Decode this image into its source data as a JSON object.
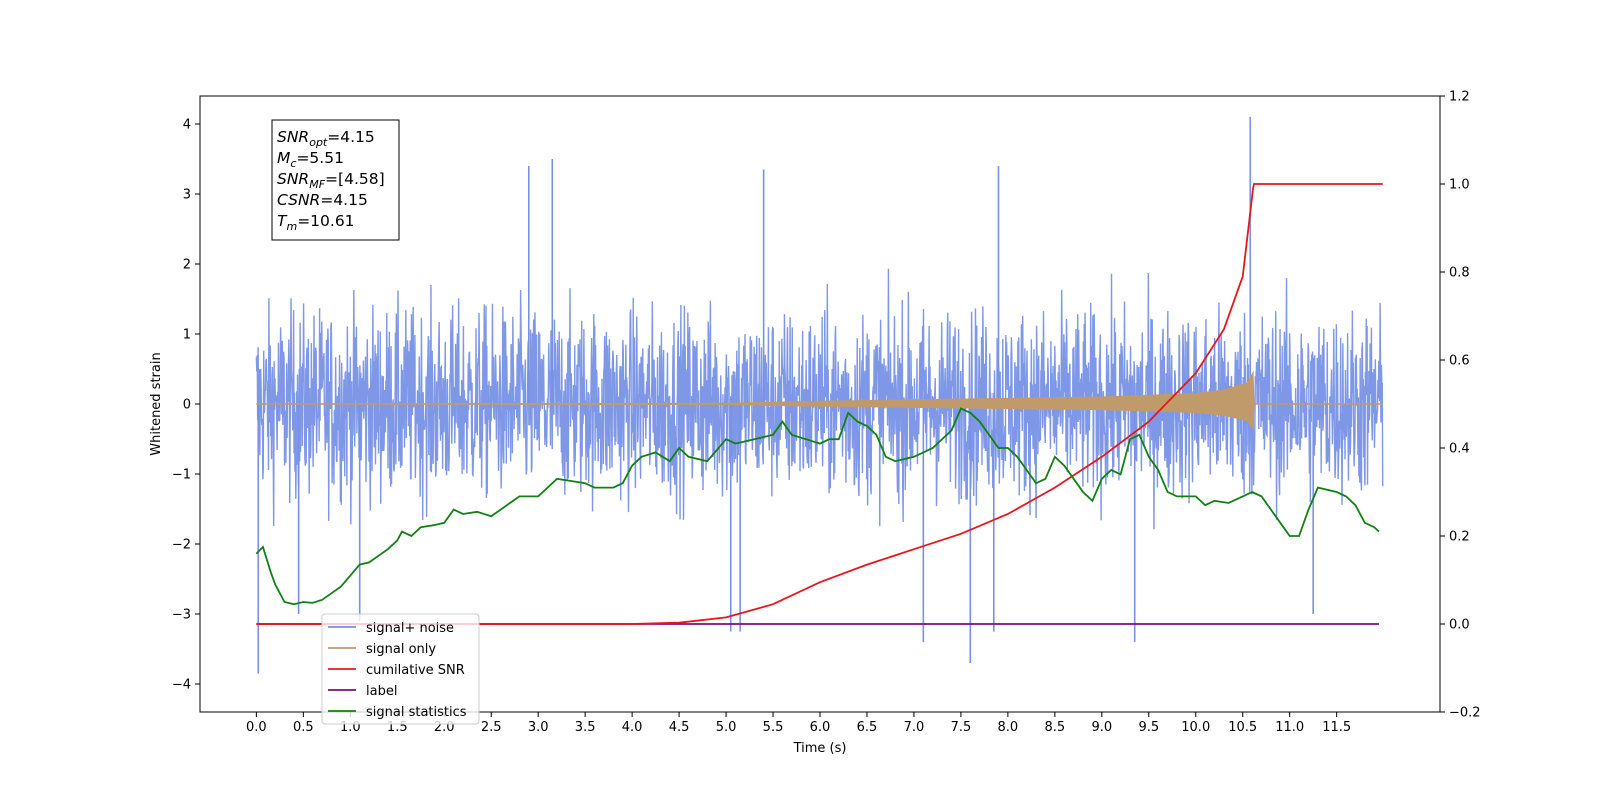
{
  "chart_data": {
    "type": "line",
    "xlabel": "Time (s)",
    "ylabel": "Whitened strain",
    "xlim": [
      -0.6,
      12.6
    ],
    "ylim": [
      -4.4,
      4.4
    ],
    "y2lim": [
      -0.2,
      1.2
    ],
    "x_ticks": [
      0.0,
      0.5,
      1.0,
      1.5,
      2.0,
      2.5,
      3.0,
      3.5,
      4.0,
      4.5,
      5.0,
      5.5,
      6.0,
      6.5,
      7.0,
      7.5,
      8.0,
      8.5,
      9.0,
      9.5,
      10.0,
      10.5,
      11.0,
      11.5
    ],
    "x_tick_labels": [
      "0.0",
      "0.5",
      "1.0",
      "1.5",
      "2.0",
      "2.5",
      "3.0",
      "3.5",
      "4.0",
      "4.5",
      "5.0",
      "5.5",
      "6.0",
      "6.5",
      "7.0",
      "7.5",
      "8.0",
      "8.5",
      "9.0",
      "9.5",
      "10.0",
      "10.5",
      "11.0",
      "11.5"
    ],
    "y_ticks": [
      -4,
      -3,
      -2,
      -1,
      0,
      1,
      2,
      3,
      4
    ],
    "y_tick_labels": [
      "−4",
      "−3",
      "−2",
      "−1",
      "0",
      "1",
      "2",
      "3",
      "4"
    ],
    "y2_ticks": [
      -0.2,
      0.0,
      0.2,
      0.4,
      0.6,
      0.8,
      1.0,
      1.2
    ],
    "y2_tick_labels": [
      "−0.2",
      "0.0",
      "0.2",
      "0.4",
      "0.6",
      "0.8",
      "1.0",
      "1.2"
    ],
    "grid": false,
    "legend_placement": "lower-left",
    "annotation_box": [
      {
        "sym": "SNR",
        "sub": "opt",
        "rest": "=4.15"
      },
      {
        "sym": "M",
        "sub": "c",
        "rest": "=5.51"
      },
      {
        "sym": "SNR",
        "sub": "MF",
        "rest": "=[4.58]"
      },
      {
        "sym": "CSNR",
        "sub": "",
        "rest": "=4.15"
      },
      {
        "sym": "T",
        "sub": "m",
        "rest": "=10.61"
      }
    ],
    "series": [
      {
        "name": "signal+ noise",
        "color": "#7891e6",
        "axis": "left",
        "x_range": [
          0.0,
          11.99
        ],
        "description_values": {
          "typical_min": -1.6,
          "typical_max": 1.4,
          "extreme_min": -3.9,
          "extreme_max": 4.1
        },
        "spikes": [
          [
            0.02,
            -3.85
          ],
          [
            0.45,
            -3.0
          ],
          [
            1.1,
            -3.1
          ],
          [
            2.9,
            3.4
          ],
          [
            3.15,
            3.5
          ],
          [
            5.05,
            -3.25
          ],
          [
            5.15,
            -3.25
          ],
          [
            5.4,
            3.35
          ],
          [
            7.1,
            -3.4
          ],
          [
            7.6,
            -3.7
          ],
          [
            7.85,
            -3.25
          ],
          [
            7.9,
            3.4
          ],
          [
            9.35,
            -3.4
          ],
          [
            10.58,
            4.1
          ],
          [
            11.25,
            -3.0
          ]
        ]
      },
      {
        "name": "signal only",
        "color": "#c19a6b",
        "axis": "left",
        "x_range": [
          0.0,
          11.99
        ],
        "envelope": [
          [
            0.0,
            0.0
          ],
          [
            5.0,
            0.01
          ],
          [
            6.0,
            0.04
          ],
          [
            7.0,
            0.06
          ],
          [
            8.0,
            0.08
          ],
          [
            9.0,
            0.1
          ],
          [
            10.0,
            0.15
          ],
          [
            10.3,
            0.2
          ],
          [
            10.55,
            0.3
          ],
          [
            10.61,
            0.45
          ],
          [
            10.62,
            0.0
          ],
          [
            11.99,
            0.0
          ]
        ]
      },
      {
        "name": "cumilative SNR",
        "color": "#e8161c",
        "axis": "right",
        "points": [
          [
            0.0,
            0.0
          ],
          [
            4.0,
            0.0
          ],
          [
            4.5,
            0.003
          ],
          [
            5.0,
            0.015
          ],
          [
            5.5,
            0.045
          ],
          [
            6.0,
            0.095
          ],
          [
            6.5,
            0.135
          ],
          [
            7.0,
            0.17
          ],
          [
            7.5,
            0.205
          ],
          [
            8.0,
            0.25
          ],
          [
            8.5,
            0.31
          ],
          [
            9.0,
            0.38
          ],
          [
            9.5,
            0.46
          ],
          [
            10.0,
            0.57
          ],
          [
            10.3,
            0.67
          ],
          [
            10.5,
            0.79
          ],
          [
            10.61,
            0.99
          ],
          [
            10.62,
            1.0
          ],
          [
            11.99,
            1.0
          ]
        ]
      },
      {
        "name": "label",
        "color": "#7b0f7b",
        "axis": "right",
        "points": [
          [
            0.0,
            0.0
          ],
          [
            11.95,
            0.0
          ]
        ]
      },
      {
        "name": "signal statistics",
        "color": "#138013",
        "axis": "right",
        "points": [
          [
            0.0,
            0.16
          ],
          [
            0.07,
            0.175
          ],
          [
            0.15,
            0.12
          ],
          [
            0.2,
            0.09
          ],
          [
            0.3,
            0.05
          ],
          [
            0.4,
            0.045
          ],
          [
            0.5,
            0.05
          ],
          [
            0.6,
            0.048
          ],
          [
            0.7,
            0.055
          ],
          [
            0.8,
            0.07
          ],
          [
            0.9,
            0.085
          ],
          [
            1.0,
            0.11
          ],
          [
            1.1,
            0.135
          ],
          [
            1.2,
            0.14
          ],
          [
            1.3,
            0.155
          ],
          [
            1.4,
            0.17
          ],
          [
            1.5,
            0.19
          ],
          [
            1.55,
            0.21
          ],
          [
            1.65,
            0.2
          ],
          [
            1.75,
            0.22
          ],
          [
            1.9,
            0.225
          ],
          [
            2.0,
            0.23
          ],
          [
            2.1,
            0.26
          ],
          [
            2.2,
            0.25
          ],
          [
            2.35,
            0.255
          ],
          [
            2.5,
            0.245
          ],
          [
            2.6,
            0.26
          ],
          [
            2.8,
            0.29
          ],
          [
            3.0,
            0.29
          ],
          [
            3.1,
            0.31
          ],
          [
            3.2,
            0.33
          ],
          [
            3.35,
            0.325
          ],
          [
            3.5,
            0.32
          ],
          [
            3.6,
            0.31
          ],
          [
            3.7,
            0.31
          ],
          [
            3.8,
            0.31
          ],
          [
            3.9,
            0.32
          ],
          [
            4.0,
            0.36
          ],
          [
            4.1,
            0.38
          ],
          [
            4.25,
            0.39
          ],
          [
            4.4,
            0.37
          ],
          [
            4.5,
            0.4
          ],
          [
            4.6,
            0.38
          ],
          [
            4.8,
            0.37
          ],
          [
            5.0,
            0.42
          ],
          [
            5.1,
            0.41
          ],
          [
            5.3,
            0.42
          ],
          [
            5.5,
            0.43
          ],
          [
            5.6,
            0.46
          ],
          [
            5.7,
            0.43
          ],
          [
            5.85,
            0.42
          ],
          [
            6.0,
            0.41
          ],
          [
            6.1,
            0.42
          ],
          [
            6.2,
            0.42
          ],
          [
            6.3,
            0.48
          ],
          [
            6.4,
            0.46
          ],
          [
            6.5,
            0.45
          ],
          [
            6.6,
            0.43
          ],
          [
            6.7,
            0.38
          ],
          [
            6.8,
            0.37
          ],
          [
            7.0,
            0.38
          ],
          [
            7.1,
            0.39
          ],
          [
            7.2,
            0.4
          ],
          [
            7.3,
            0.42
          ],
          [
            7.4,
            0.44
          ],
          [
            7.5,
            0.49
          ],
          [
            7.6,
            0.48
          ],
          [
            7.7,
            0.46
          ],
          [
            7.8,
            0.43
          ],
          [
            7.9,
            0.4
          ],
          [
            8.0,
            0.4
          ],
          [
            8.1,
            0.38
          ],
          [
            8.2,
            0.35
          ],
          [
            8.3,
            0.32
          ],
          [
            8.4,
            0.33
          ],
          [
            8.5,
            0.38
          ],
          [
            8.6,
            0.36
          ],
          [
            8.7,
            0.33
          ],
          [
            8.8,
            0.3
          ],
          [
            8.9,
            0.28
          ],
          [
            9.0,
            0.33
          ],
          [
            9.1,
            0.35
          ],
          [
            9.2,
            0.34
          ],
          [
            9.3,
            0.42
          ],
          [
            9.4,
            0.43
          ],
          [
            9.5,
            0.38
          ],
          [
            9.6,
            0.35
          ],
          [
            9.7,
            0.3
          ],
          [
            9.8,
            0.29
          ],
          [
            10.0,
            0.29
          ],
          [
            10.1,
            0.27
          ],
          [
            10.2,
            0.28
          ],
          [
            10.35,
            0.275
          ],
          [
            10.5,
            0.29
          ],
          [
            10.6,
            0.3
          ],
          [
            10.7,
            0.29
          ],
          [
            10.8,
            0.26
          ],
          [
            10.9,
            0.23
          ],
          [
            11.0,
            0.2
          ],
          [
            11.1,
            0.2
          ],
          [
            11.2,
            0.26
          ],
          [
            11.3,
            0.31
          ],
          [
            11.5,
            0.3
          ],
          [
            11.6,
            0.29
          ],
          [
            11.7,
            0.27
          ],
          [
            11.8,
            0.23
          ],
          [
            11.9,
            0.22
          ],
          [
            11.95,
            0.21
          ]
        ]
      }
    ]
  }
}
